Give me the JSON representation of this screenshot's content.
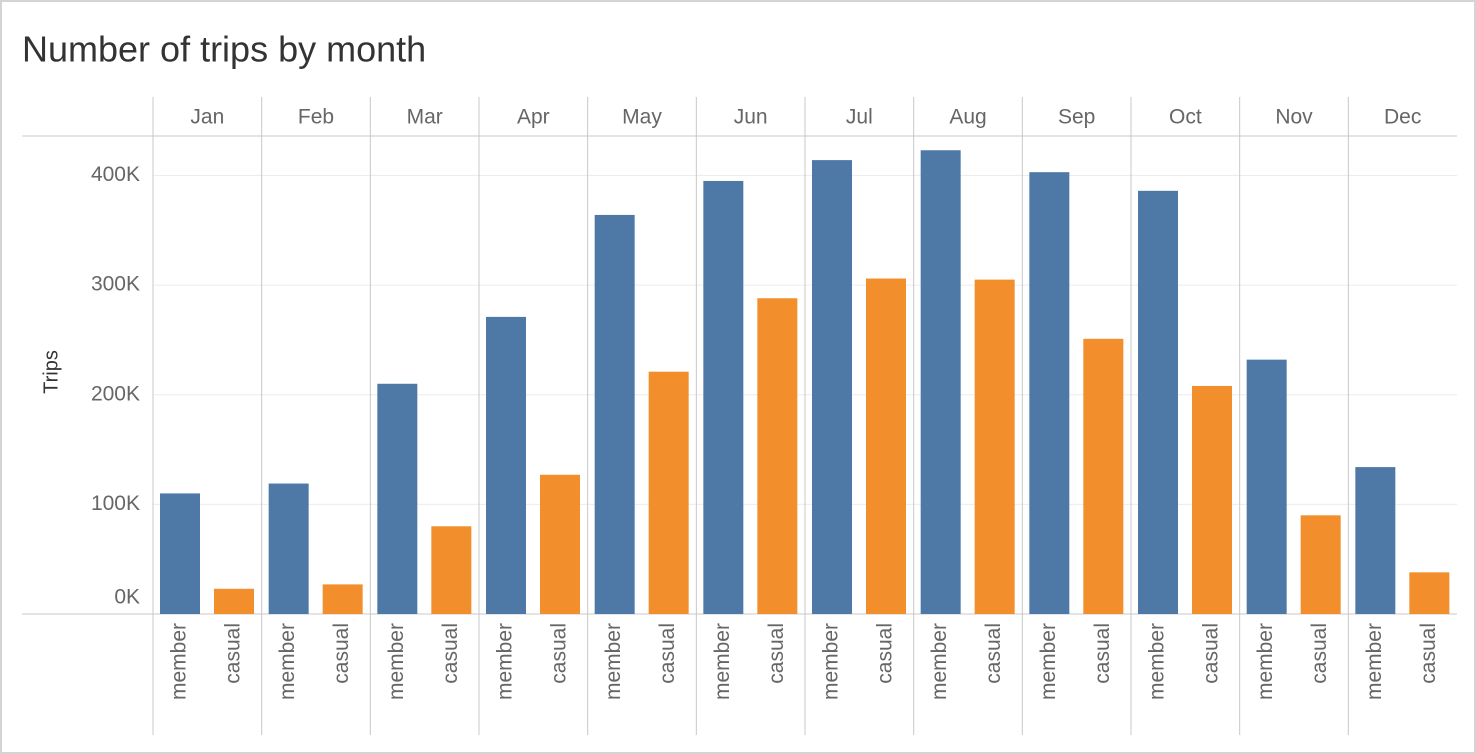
{
  "chart_data": {
    "type": "bar",
    "title": "Number of trips by month",
    "ylabel": "Trips",
    "categories": [
      "Jan",
      "Feb",
      "Mar",
      "Apr",
      "May",
      "Jun",
      "Jul",
      "Aug",
      "Sep",
      "Oct",
      "Nov",
      "Dec"
    ],
    "series": [
      {
        "name": "member",
        "color": "#4e79a7",
        "values": [
          110000,
          119000,
          210000,
          271000,
          364000,
          395000,
          414000,
          423000,
          403000,
          386000,
          232000,
          134000
        ]
      },
      {
        "name": "casual",
        "color": "#f28e2b",
        "values": [
          23000,
          27000,
          80000,
          127000,
          221000,
          288000,
          306000,
          305000,
          251000,
          208000,
          90000,
          38000
        ]
      }
    ],
    "ylim": [
      0,
      436000
    ],
    "yticks": [
      {
        "value": 0,
        "label": "0K"
      },
      {
        "value": 100000,
        "label": "100K"
      },
      {
        "value": 200000,
        "label": "200K"
      },
      {
        "value": 300000,
        "label": "300K"
      },
      {
        "value": 400000,
        "label": "400K"
      }
    ],
    "grid": true
  }
}
